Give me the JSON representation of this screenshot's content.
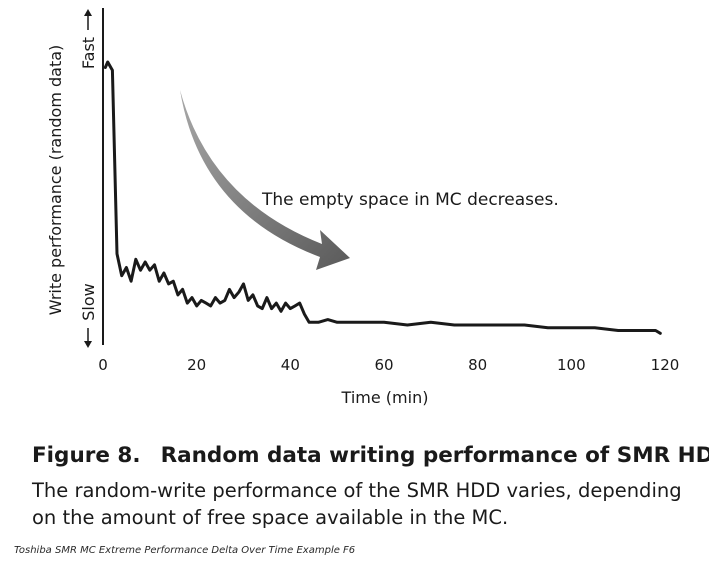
{
  "chart_data": {
    "type": "line",
    "xlabel": "Time (min)",
    "ylabel": "Write performance (random data)",
    "y_high_label": "Fast",
    "y_low_label": "Slow",
    "xlim": [
      0,
      120
    ],
    "ylim": [
      0,
      1
    ],
    "x_ticks": [
      0,
      20,
      40,
      60,
      80,
      100,
      120
    ],
    "annotation": "The empty space in MC decreases.",
    "grid": false,
    "series": [
      {
        "x": [
          0.5,
          1,
          2,
          3,
          4,
          5,
          6,
          7,
          8,
          9,
          10,
          11,
          12,
          13,
          14,
          15,
          16,
          17,
          18,
          19,
          20,
          21,
          22,
          23,
          24,
          25,
          26,
          27,
          28,
          29,
          30,
          31,
          32,
          33,
          34,
          35,
          36,
          37,
          38,
          39,
          40,
          41,
          42,
          43,
          44,
          46,
          48,
          50,
          55,
          60,
          65,
          70,
          75,
          80,
          85,
          90,
          95,
          100,
          105,
          110,
          115,
          118,
          119
        ],
        "y": [
          0.98,
          1.0,
          0.97,
          0.3,
          0.22,
          0.25,
          0.2,
          0.28,
          0.24,
          0.27,
          0.24,
          0.26,
          0.2,
          0.23,
          0.19,
          0.2,
          0.15,
          0.17,
          0.12,
          0.14,
          0.11,
          0.13,
          0.12,
          0.11,
          0.14,
          0.12,
          0.13,
          0.17,
          0.14,
          0.16,
          0.19,
          0.13,
          0.15,
          0.11,
          0.1,
          0.14,
          0.1,
          0.12,
          0.09,
          0.12,
          0.1,
          0.11,
          0.12,
          0.08,
          0.05,
          0.05,
          0.06,
          0.05,
          0.05,
          0.05,
          0.04,
          0.05,
          0.04,
          0.04,
          0.04,
          0.04,
          0.03,
          0.03,
          0.03,
          0.02,
          0.02,
          0.02,
          0.01
        ]
      }
    ]
  },
  "figure": {
    "number": "Figure 8.",
    "title": "Random data writing performance of SMR HDD.",
    "description": "The random-write performance of the SMR HDD varies, depending on the amount of free space available in the MC."
  },
  "caption": "Toshiba SMR MC Extreme Performance Delta Over Time Example F6",
  "colors": {
    "line": "#1a1a1a",
    "arrow_dark": "#5a5a5a",
    "arrow_light": "#a8a8a8",
    "text": "#1a1a1a"
  }
}
